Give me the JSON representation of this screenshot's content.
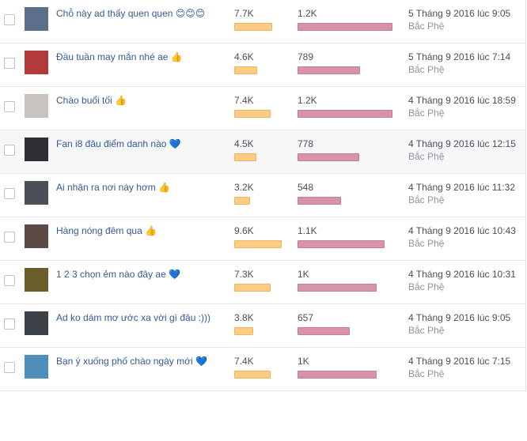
{
  "table": {
    "rows": [
      {
        "post": "Chỗ này ad thấy quen quen 😊😊😊",
        "reach": {
          "value": 7700,
          "label": "7.7K"
        },
        "engagement": {
          "value": 1200,
          "label": "1.2K"
        },
        "date": "5 Tháng 9 2016 lúc 9:05",
        "author": "Bắc Phệ"
      },
      {
        "post": "Đầu tuần may mắn nhé ae 👍",
        "reach": {
          "value": 4600,
          "label": "4.6K"
        },
        "engagement": 789,
        "date": "5 Tháng 9 2016 lúc 7:14",
        "author": "Bắc Phệ"
      },
      {
        "post": "Chào buổi tối 👍",
        "reach": {
          "value": 7400,
          "label": "7.4K"
        },
        "engagement": {
          "value": 1200,
          "label": "1.2K"
        },
        "date": "4 Tháng 9 2016 lúc 18:59",
        "author": "Bắc Phệ"
      },
      {
        "post": "Fan i8 đâu điểm danh nào 💙",
        "reach": {
          "value": 4500,
          "label": "4.5K"
        },
        "engagement": 778,
        "date": "4 Tháng 9 2016 lúc 12:15",
        "author": "Bắc Phệ"
      },
      {
        "post": "Ai nhận ra nơi này hơm 👍",
        "reach": {
          "value": 3200,
          "label": "3.2K"
        },
        "engagement": 548,
        "date": "4 Tháng 9 2016 lúc 11:32",
        "author": "Bắc Phệ"
      },
      {
        "post": "Hàng nóng đêm qua 👍",
        "reach": {
          "value": 9600,
          "label": "9.6K"
        },
        "engagement": {
          "value": 1100,
          "label": "1.1K"
        },
        "date": "4 Tháng 9 2016 lúc 10:43",
        "author": "Bắc Phệ"
      },
      {
        "post": "1 2 3 chọn ẻm nào đây ae 💙",
        "reach": {
          "value": 7300,
          "label": "7.3K"
        },
        "engagement": {
          "value": 1000,
          "label": "1K"
        },
        "date": "4 Tháng 9 2016 lúc 10:31",
        "author": "Bắc Phệ"
      },
      {
        "post": "Ad ko dám mơ ước xa vời gì đâu :)))",
        "reach": {
          "value": 3800,
          "label": "3.8K"
        },
        "engagement": 657,
        "date": "4 Tháng 9 2016 lúc 9:05",
        "author": "Bắc Phệ"
      },
      {
        "post": "Bạn ý xuống phố chào ngày mới 💙",
        "reach": {
          "value": 7400,
          "label": "7.4K"
        },
        "engagement": {
          "value": 1000,
          "label": "1K"
        },
        "date": "4 Tháng 9 2016 lúc 7:15",
        "author": "Bắc Phệ"
      }
    ]
  }
}
